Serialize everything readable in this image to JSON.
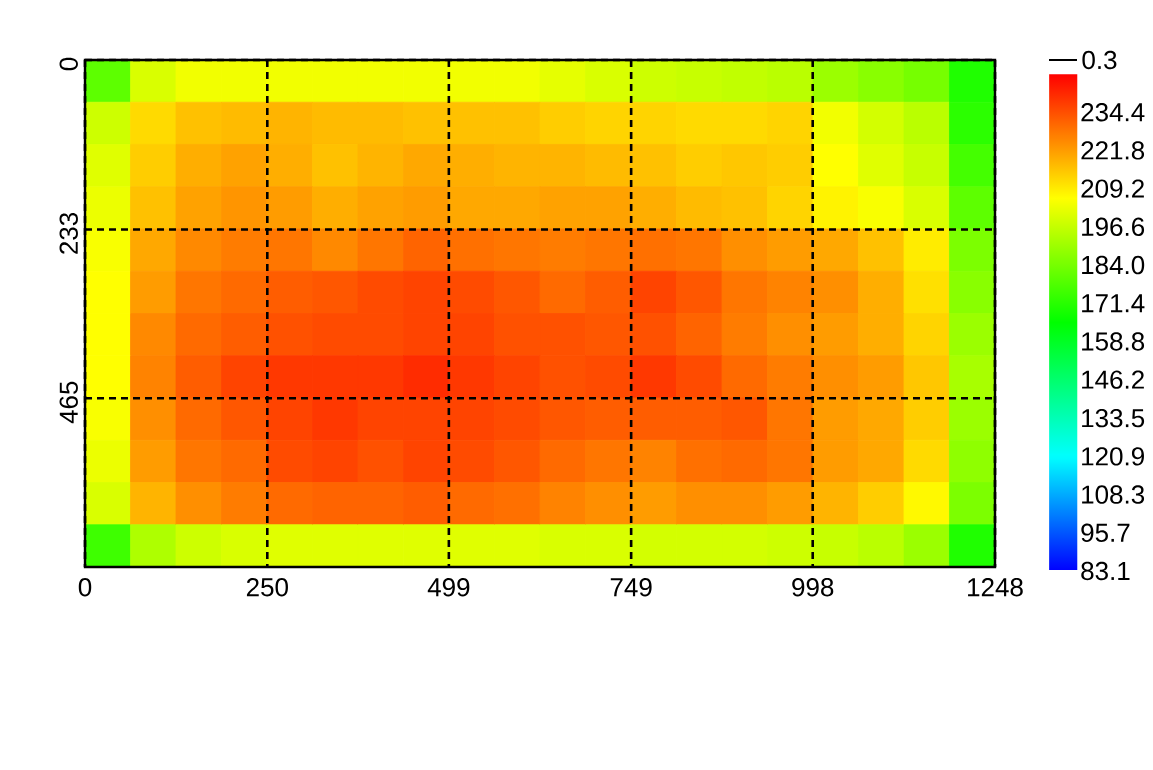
{
  "chart_data": {
    "type": "heatmap",
    "x": [
      31.2,
      93.6,
      156.0,
      218.4,
      280.8,
      343.2,
      405.6,
      468.0,
      530.4,
      592.8,
      655.2,
      717.6,
      780.0,
      842.4,
      904.8,
      967.2,
      1029.6,
      1092.0,
      1154.4,
      1216.8
    ],
    "y": [
      29.0,
      87.1,
      145.2,
      203.3,
      261.4,
      319.5,
      377.5,
      435.6,
      493.7,
      551.8,
      609.9,
      668.0
    ],
    "cells": [
      [
        180,
        200,
        204,
        204,
        204,
        204,
        204,
        204,
        204,
        204,
        202,
        200,
        198,
        197,
        196,
        195,
        190,
        187,
        184,
        170
      ],
      [
        198,
        212,
        216,
        217,
        218,
        217,
        217,
        216,
        216,
        216,
        214,
        213,
        213,
        212,
        212,
        213,
        204,
        199,
        195,
        172
      ],
      [
        201,
        214,
        219,
        221,
        219,
        216,
        218,
        220,
        219,
        218,
        218,
        217,
        216,
        214,
        215,
        214,
        206,
        201,
        197,
        176
      ],
      [
        203,
        216,
        221,
        223,
        222,
        219,
        221,
        222,
        220,
        220,
        221,
        221,
        219,
        217,
        216,
        213,
        208,
        205,
        200,
        180
      ],
      [
        205,
        220,
        225,
        227,
        228,
        225,
        228,
        231,
        229,
        228,
        227,
        228,
        229,
        228,
        224,
        222,
        220,
        216,
        209,
        185
      ],
      [
        206,
        222,
        228,
        230,
        232,
        233,
        235,
        236,
        235,
        233,
        230,
        232,
        236,
        233,
        228,
        226,
        224,
        219,
        211,
        187
      ],
      [
        206,
        225,
        230,
        232,
        234,
        235,
        235,
        236,
        236,
        234,
        234,
        233,
        234,
        231,
        227,
        224,
        222,
        219,
        213,
        190
      ],
      [
        206,
        226,
        232,
        236,
        238,
        238,
        238,
        240,
        238,
        236,
        234,
        235,
        238,
        235,
        230,
        227,
        224,
        222,
        215,
        192
      ],
      [
        205,
        224,
        230,
        233,
        236,
        238,
        236,
        236,
        236,
        235,
        233,
        232,
        232,
        232,
        233,
        228,
        222,
        220,
        214,
        190
      ],
      [
        203,
        222,
        228,
        230,
        235,
        236,
        234,
        236,
        235,
        233,
        230,
        228,
        226,
        229,
        230,
        228,
        222,
        220,
        212,
        188
      ],
      [
        200,
        218,
        224,
        227,
        230,
        231,
        231,
        232,
        230,
        229,
        226,
        224,
        222,
        224,
        224,
        222,
        218,
        214,
        207,
        185
      ],
      [
        175,
        193,
        198,
        200,
        201,
        201,
        201,
        201,
        201,
        201,
        200,
        200,
        199,
        199,
        199,
        198,
        197,
        195,
        190,
        170
      ]
    ],
    "xlim": [
      0,
      1248
    ],
    "ylim": [
      697,
      0
    ],
    "xticks": [
      0,
      250,
      499,
      749,
      998,
      1248
    ],
    "yticks": [
      0,
      233,
      465
    ],
    "clim": [
      83.1,
      247.0
    ],
    "cticks": [
      83.1,
      95.7,
      108.3,
      120.9,
      133.5,
      146.2,
      158.8,
      171.4,
      {
        "value": 184,
        "label": "184.0"
      },
      196.6,
      209.2,
      221.8,
      234.4
    ],
    "grid": true,
    "annotations": [
      "0.3"
    ]
  }
}
